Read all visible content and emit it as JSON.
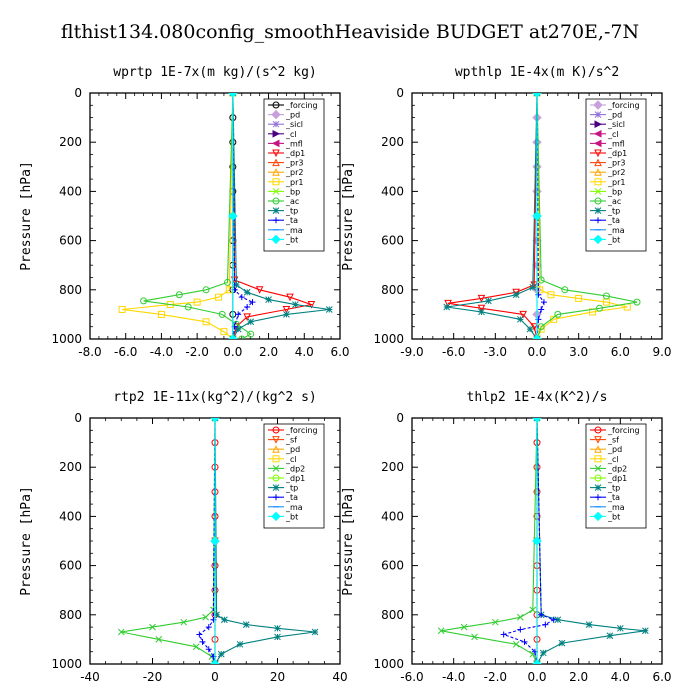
{
  "title": "flthist134.080config_smoothHeaviside  BUDGET at270E,-7N",
  "chart_data": [
    {
      "type": "line",
      "title": "wprtp  1E-7x(m kg)/(s^2 kg)",
      "xlabel": "",
      "ylabel": "Pressure [hPa]",
      "xlim": [
        -8,
        6
      ],
      "ylim": [
        1000,
        0
      ],
      "xticks": [
        "-8.0",
        "-6.0",
        "-4.0",
        "-2.0",
        "0.0",
        "2.0",
        "4.0",
        "6.0"
      ],
      "xtick_values": [
        -8,
        -6,
        -4,
        -2,
        0,
        2,
        4,
        6
      ],
      "yticks": [
        "0",
        "200",
        "400",
        "600",
        "800",
        "1000"
      ],
      "ytick_values": [
        0,
        200,
        400,
        600,
        800,
        1000
      ],
      "legend_position": "top-right",
      "series": [
        {
          "name": "_forcing",
          "color": "#000000",
          "marker": "o",
          "x": [
            0,
            0,
            0,
            0,
            0,
            0,
            0,
            0,
            0,
            0,
            0
          ],
          "y": [
            0,
            100,
            200,
            300,
            400,
            500,
            600,
            700,
            800,
            900,
            1000
          ]
        },
        {
          "name": "_pd",
          "color": "#c8a0dc",
          "marker": "d",
          "x": [],
          "y": []
        },
        {
          "name": "_sicl",
          "color": "#9370db",
          "marker": "*",
          "x": [],
          "y": []
        },
        {
          "name": "_cl",
          "color": "#4b0082",
          "marker": ">",
          "x": [],
          "y": []
        },
        {
          "name": "_mfl",
          "color": "#c71585",
          "marker": "<",
          "x": [],
          "y": []
        },
        {
          "name": "_dp1",
          "color": "#ff0000",
          "marker": "v",
          "x": [
            0,
            0.1,
            1.5,
            3.2,
            4.4,
            3.0,
            0.8,
            0.2,
            0
          ],
          "y": [
            0,
            760,
            800,
            830,
            860,
            880,
            910,
            950,
            1000
          ]
        },
        {
          "name": "_pr3",
          "color": "#ff4500",
          "marker": "^",
          "x": [],
          "y": []
        },
        {
          "name": "_pr2",
          "color": "#ffa500",
          "marker": "^",
          "x": [],
          "y": []
        },
        {
          "name": "_pr1",
          "color": "#ffd700",
          "marker": "s",
          "x": [
            0,
            -0.2,
            -0.8,
            -2.0,
            -3.5,
            -6.2,
            -4.0,
            -1.5,
            -0.5,
            0
          ],
          "y": [
            0,
            800,
            830,
            850,
            860,
            880,
            900,
            930,
            970,
            1000
          ]
        },
        {
          "name": "_bp",
          "color": "#7fff00",
          "marker": "x",
          "x": [],
          "y": []
        },
        {
          "name": "_ac",
          "color": "#32cd32",
          "marker": "o",
          "x": [
            0,
            -0.3,
            -1.5,
            -3.0,
            -5.0,
            -2.5,
            -0.6,
            0.2,
            1.0,
            0.5
          ],
          "y": [
            0,
            770,
            800,
            820,
            845,
            870,
            900,
            940,
            980,
            1000
          ]
        },
        {
          "name": "_tp",
          "color": "#008080",
          "marker": "*",
          "x": [
            0,
            0.2,
            0.8,
            2.0,
            3.5,
            5.4,
            3.0,
            1.0,
            0.3,
            0
          ],
          "y": [
            0,
            780,
            810,
            840,
            860,
            880,
            900,
            930,
            960,
            1000
          ]
        },
        {
          "name": "_ta",
          "color": "#0000ff",
          "marker": "+",
          "x": [
            0,
            0.1,
            0.5,
            1.1,
            0.8,
            0.3,
            0.1,
            0
          ],
          "y": [
            0,
            800,
            830,
            850,
            870,
            900,
            950,
            1000
          ]
        },
        {
          "name": "_ma",
          "color": "#1e90ff",
          "marker": "-",
          "x": [
            0,
            0,
            0
          ],
          "y": [
            0,
            500,
            1000
          ]
        },
        {
          "name": "_bt",
          "color": "#00ffff",
          "marker": "D",
          "x": [
            0,
            0,
            0
          ],
          "y": [
            0,
            500,
            1000
          ]
        }
      ]
    },
    {
      "type": "line",
      "title": "wpthlp  1E-4x(m K)/s^2",
      "xlabel": "",
      "ylabel": "Pressure [hPa]",
      "xlim": [
        -9,
        9
      ],
      "ylim": [
        1000,
        0
      ],
      "xticks": [
        "-9.0",
        "-6.0",
        "-3.0",
        "0.0",
        "3.0",
        "6.0",
        "9.0"
      ],
      "xtick_values": [
        -9,
        -6,
        -3,
        0,
        3,
        6,
        9
      ],
      "yticks": [
        "0",
        "200",
        "400",
        "600",
        "800",
        "1000"
      ],
      "ytick_values": [
        0,
        200,
        400,
        600,
        800,
        1000
      ],
      "legend_position": "top-right",
      "series": [
        {
          "name": "_forcing",
          "color": "#c8a0dc",
          "marker": "d",
          "x": [
            0,
            0,
            0,
            0,
            0,
            0,
            0,
            0,
            0,
            0,
            0
          ],
          "y": [
            0,
            100,
            200,
            300,
            400,
            500,
            600,
            700,
            800,
            900,
            1000
          ]
        },
        {
          "name": "_pd",
          "color": "#9370db",
          "marker": "*",
          "x": [],
          "y": []
        },
        {
          "name": "_sicl",
          "color": "#4b0082",
          "marker": ">",
          "x": [],
          "y": []
        },
        {
          "name": "_cl",
          "color": "#c71585",
          "marker": "<",
          "x": [],
          "y": []
        },
        {
          "name": "_mfl",
          "color": "#c71585",
          "marker": "<",
          "x": [],
          "y": []
        },
        {
          "name": "_dp1",
          "color": "#ff0000",
          "marker": "v",
          "x": [
            0,
            -0.2,
            -1.5,
            -4.0,
            -6.4,
            -4.0,
            -1.0,
            -0.2,
            0
          ],
          "y": [
            0,
            780,
            810,
            835,
            855,
            875,
            900,
            950,
            1000
          ]
        },
        {
          "name": "_pr3",
          "color": "#ff4500",
          "marker": "^",
          "x": [],
          "y": []
        },
        {
          "name": "_pr2",
          "color": "#ffa500",
          "marker": "^",
          "x": [],
          "y": []
        },
        {
          "name": "_pr1",
          "color": "#ffd700",
          "marker": "s",
          "x": [
            0,
            0.2,
            1.0,
            3.0,
            5.0,
            6.5,
            4.0,
            1.2,
            0.3,
            0
          ],
          "y": [
            0,
            800,
            820,
            835,
            850,
            870,
            890,
            920,
            960,
            1000
          ]
        },
        {
          "name": "_bp",
          "color": "#7fff00",
          "marker": "x",
          "x": [],
          "y": []
        },
        {
          "name": "_ac",
          "color": "#32cd32",
          "marker": "o",
          "x": [
            0,
            0.3,
            2.0,
            5.0,
            7.2,
            4.5,
            1.5,
            0.3,
            0
          ],
          "y": [
            0,
            760,
            800,
            825,
            850,
            875,
            900,
            950,
            1000
          ]
        },
        {
          "name": "_tp",
          "color": "#008080",
          "marker": "*",
          "x": [
            0,
            -0.3,
            -1.5,
            -3.5,
            -6.5,
            -4.0,
            -1.2,
            -0.5,
            0
          ],
          "y": [
            0,
            790,
            820,
            845,
            870,
            890,
            920,
            960,
            1000
          ]
        },
        {
          "name": "_ta",
          "color": "#0000ff",
          "marker": "+",
          "x": [
            0,
            0.1,
            0.5,
            0.3,
            0.1,
            0
          ],
          "y": [
            0,
            820,
            850,
            880,
            920,
            1000
          ]
        },
        {
          "name": "_ma",
          "color": "#1e90ff",
          "marker": "-",
          "x": [
            0,
            0,
            0
          ],
          "y": [
            0,
            500,
            1000
          ]
        },
        {
          "name": "_bt",
          "color": "#00ffff",
          "marker": "D",
          "x": [
            0,
            0,
            0
          ],
          "y": [
            0,
            500,
            1000
          ]
        }
      ]
    },
    {
      "type": "line",
      "title": "rtp2  1E-11x(kg^2)/(kg^2 s)",
      "xlabel": "",
      "ylabel": "Pressure [hPa]",
      "xlim": [
        -40,
        40
      ],
      "ylim": [
        1000,
        0
      ],
      "xticks": [
        "-40",
        "-20",
        "0",
        "20",
        "40"
      ],
      "xtick_values": [
        -40,
        -20,
        0,
        20,
        40
      ],
      "yticks": [
        "0",
        "200",
        "400",
        "600",
        "800",
        "1000"
      ],
      "ytick_values": [
        0,
        200,
        400,
        600,
        800,
        1000
      ],
      "legend_position": "top-right",
      "series": [
        {
          "name": "_forcing",
          "color": "#ff0000",
          "marker": "o",
          "x": [
            0,
            0,
            0,
            0,
            0,
            0,
            0,
            0,
            0,
            0,
            0
          ],
          "y": [
            0,
            100,
            200,
            300,
            400,
            500,
            600,
            700,
            800,
            900,
            1000
          ]
        },
        {
          "name": "_sf",
          "color": "#ff4500",
          "marker": "v",
          "x": [
            0,
            0,
            0
          ],
          "y": [
            0,
            500,
            1000
          ]
        },
        {
          "name": "_pd",
          "color": "#ffa500",
          "marker": "^",
          "x": [],
          "y": []
        },
        {
          "name": "_cl",
          "color": "#ffd700",
          "marker": "s",
          "x": [],
          "y": []
        },
        {
          "name": "_dp2",
          "color": "#32cd32",
          "marker": "x",
          "x": [
            0,
            -0.5,
            -3.0,
            -10.0,
            -20.0,
            -30.0,
            -18.0,
            -6.0,
            -1.0,
            0
          ],
          "y": [
            0,
            780,
            810,
            830,
            850,
            870,
            900,
            930,
            970,
            1000
          ]
        },
        {
          "name": "_dp1",
          "color": "#7fff00",
          "marker": "o",
          "x": [],
          "y": []
        },
        {
          "name": "_tp",
          "color": "#008080",
          "marker": "*",
          "x": [
            0,
            0.5,
            3.0,
            10.0,
            20.0,
            32.0,
            20.0,
            8.0,
            2.0,
            0
          ],
          "y": [
            0,
            800,
            820,
            840,
            855,
            870,
            890,
            920,
            960,
            1000
          ]
        },
        {
          "name": "_ta",
          "color": "#0000ff",
          "marker": "+",
          "x": [
            0,
            -0.5,
            -2.0,
            -5.0,
            -4.0,
            -2.0,
            -0.5,
            0
          ],
          "y": [
            0,
            820,
            850,
            880,
            910,
            940,
            970,
            1000
          ]
        },
        {
          "name": "_ma",
          "color": "#1e90ff",
          "marker": "-",
          "x": [
            0,
            0,
            0
          ],
          "y": [
            0,
            500,
            1000
          ]
        },
        {
          "name": "_bt",
          "color": "#00ffff",
          "marker": "D",
          "x": [
            0,
            0,
            0
          ],
          "y": [
            0,
            500,
            1000
          ]
        }
      ]
    },
    {
      "type": "line",
      "title": "thlp2  1E-4x(K^2)/s",
      "xlabel": "",
      "ylabel": "Pressure [hPa]",
      "xlim": [
        -6,
        6
      ],
      "ylim": [
        1000,
        0
      ],
      "xticks": [
        "-6.0",
        "-4.0",
        "-2.0",
        "0.0",
        "2.0",
        "4.0",
        "6.0"
      ],
      "xtick_values": [
        -6,
        -4,
        -2,
        0,
        2,
        4,
        6
      ],
      "yticks": [
        "0",
        "200",
        "400",
        "600",
        "800",
        "1000"
      ],
      "ytick_values": [
        0,
        200,
        400,
        600,
        800,
        1000
      ],
      "legend_position": "top-right",
      "series": [
        {
          "name": "_forcing",
          "color": "#ff0000",
          "marker": "o",
          "x": [
            0,
            0,
            0,
            0,
            0,
            0,
            0,
            0,
            0,
            0,
            0
          ],
          "y": [
            0,
            100,
            200,
            300,
            400,
            500,
            600,
            700,
            800,
            900,
            1000
          ]
        },
        {
          "name": "_sf",
          "color": "#ff4500",
          "marker": "v",
          "x": [
            0,
            0,
            0
          ],
          "y": [
            0,
            500,
            1000
          ]
        },
        {
          "name": "_pd",
          "color": "#ffa500",
          "marker": "^",
          "x": [],
          "y": []
        },
        {
          "name": "_cl",
          "color": "#ffd700",
          "marker": "s",
          "x": [],
          "y": []
        },
        {
          "name": "_dp2",
          "color": "#32cd32",
          "marker": "x",
          "x": [
            0,
            -0.2,
            -0.8,
            -2.0,
            -3.5,
            -4.6,
            -3.0,
            -1.0,
            -0.2,
            0
          ],
          "y": [
            0,
            780,
            810,
            830,
            850,
            865,
            890,
            920,
            960,
            1000
          ]
        },
        {
          "name": "_dp1",
          "color": "#7fff00",
          "marker": "o",
          "x": [],
          "y": []
        },
        {
          "name": "_tp",
          "color": "#008080",
          "marker": "*",
          "x": [
            0,
            0.2,
            1.0,
            2.5,
            4.0,
            5.2,
            3.5,
            1.2,
            0.3,
            0
          ],
          "y": [
            0,
            800,
            820,
            840,
            855,
            865,
            885,
            915,
            955,
            1000
          ]
        },
        {
          "name": "_ta",
          "color": "#0000ff",
          "marker": "+",
          "x": [
            0,
            0.2,
            0.8,
            0.4,
            -0.8,
            -1.6,
            -0.6,
            -0.1,
            0
          ],
          "y": [
            0,
            800,
            820,
            840,
            860,
            880,
            910,
            950,
            1000
          ]
        },
        {
          "name": "_ma",
          "color": "#1e90ff",
          "marker": "-",
          "x": [
            0,
            0,
            0
          ],
          "y": [
            0,
            500,
            1000
          ]
        },
        {
          "name": "_bt",
          "color": "#00ffff",
          "marker": "D",
          "x": [
            0,
            0,
            0
          ],
          "y": [
            0,
            500,
            1000
          ]
        }
      ]
    }
  ]
}
